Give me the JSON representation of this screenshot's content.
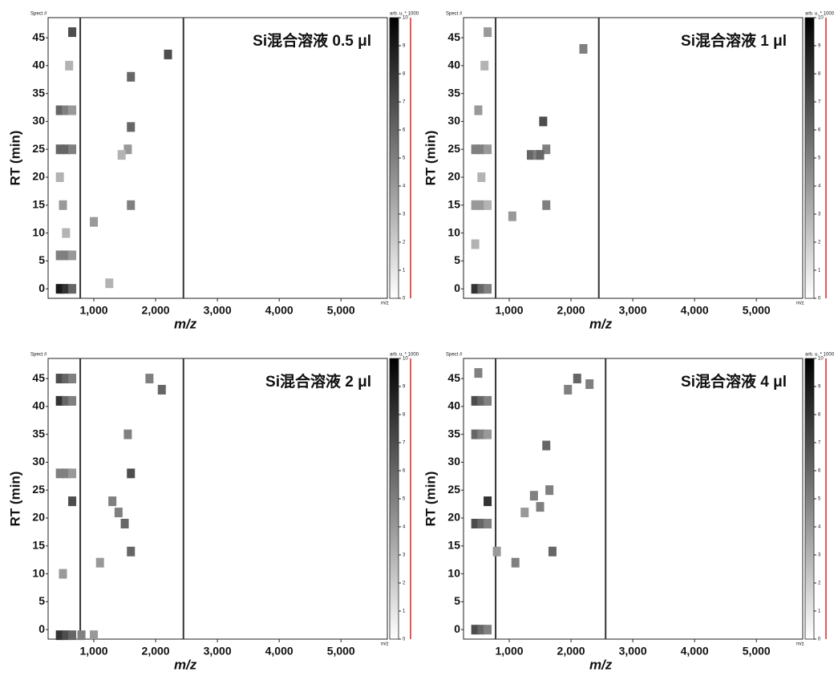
{
  "chart_data": [
    {
      "type": "heatmap",
      "title": "Si混合溶液 0.5 μl",
      "xlabel": "m/z",
      "ylabel": "RT (min)",
      "corner_label": "Spect #",
      "axis_unit": "m/z",
      "cbar_label": "arb. u. * 1000",
      "xlim": [
        260,
        5750
      ],
      "ylim": [
        -1.7,
        48.6
      ],
      "xticks": [
        {
          "value": 1000,
          "label": "1,000"
        },
        {
          "value": 2000,
          "label": "2,000"
        },
        {
          "value": 3000,
          "label": "3,000"
        },
        {
          "value": 4000,
          "label": "4,000"
        },
        {
          "value": 5000,
          "label": "5,000"
        }
      ],
      "yticks": [
        0,
        5,
        10,
        15,
        20,
        25,
        30,
        35,
        40,
        45
      ],
      "cbar_ticks": [
        0,
        1,
        2,
        3,
        4,
        5,
        6,
        7,
        8,
        9,
        10
      ],
      "traces": [
        780,
        2450
      ],
      "x": [
        450,
        550,
        650,
        450,
        550,
        650,
        450,
        550,
        650,
        450,
        550,
        650,
        500,
        600,
        1600,
        1600,
        1550,
        1600,
        1450,
        1000,
        2200,
        1250,
        650,
        450,
        550
      ],
      "y": [
        0,
        0,
        0,
        6,
        6,
        6,
        25,
        25,
        25,
        32,
        32,
        32,
        15,
        40,
        38,
        29,
        25,
        15,
        24,
        12,
        42,
        1,
        46,
        20,
        10
      ],
      "values": [
        9,
        8,
        6,
        5,
        5,
        4,
        6,
        6,
        5,
        6,
        5,
        4,
        4,
        3,
        6,
        6,
        4,
        5,
        3,
        4,
        7,
        3,
        7,
        3,
        3
      ]
    },
    {
      "type": "heatmap",
      "title": "Si混合溶液 1 μl",
      "xlabel": "m/z",
      "ylabel": "RT (min)",
      "corner_label": "Spect #",
      "axis_unit": "m/z",
      "cbar_label": "arb. u. * 1000",
      "xlim": [
        260,
        5750
      ],
      "ylim": [
        -1.7,
        48.6
      ],
      "xticks": [
        {
          "value": 1000,
          "label": "1,000"
        },
        {
          "value": 2000,
          "label": "2,000"
        },
        {
          "value": 3000,
          "label": "3,000"
        },
        {
          "value": 4000,
          "label": "4,000"
        },
        {
          "value": 5000,
          "label": "5,000"
        }
      ],
      "yticks": [
        0,
        5,
        10,
        15,
        20,
        25,
        30,
        35,
        40,
        45
      ],
      "cbar_ticks": [
        0,
        1,
        2,
        3,
        4,
        5,
        6,
        7,
        8,
        9,
        10
      ],
      "traces": [
        780,
        2450
      ],
      "x": [
        450,
        550,
        650,
        450,
        550,
        650,
        450,
        550,
        650,
        500,
        600,
        1550,
        1600,
        1350,
        1450,
        1500,
        1600,
        1050,
        2200,
        650,
        450,
        550
      ],
      "y": [
        0,
        0,
        0,
        15,
        15,
        15,
        25,
        25,
        25,
        32,
        40,
        30,
        25,
        24,
        24,
        24,
        15,
        13,
        43,
        46,
        8,
        20
      ],
      "values": [
        8,
        6,
        5,
        4,
        4,
        3,
        5,
        5,
        4,
        4,
        3,
        7,
        5,
        6,
        5,
        6,
        5,
        4,
        5,
        4,
        3,
        3
      ]
    },
    {
      "type": "heatmap",
      "title": "Si混合溶液 2 μl",
      "xlabel": "m/z",
      "ylabel": "RT (min)",
      "corner_label": "Spect #",
      "axis_unit": "m/z",
      "cbar_label": "arb. u. * 1000",
      "xlim": [
        260,
        5750
      ],
      "ylim": [
        -1.7,
        48.6
      ],
      "xticks": [
        {
          "value": 1000,
          "label": "1,000"
        },
        {
          "value": 2000,
          "label": "2,000"
        },
        {
          "value": 3000,
          "label": "3,000"
        },
        {
          "value": 4000,
          "label": "4,000"
        },
        {
          "value": 5000,
          "label": "5,000"
        }
      ],
      "yticks": [
        0,
        5,
        10,
        15,
        20,
        25,
        30,
        35,
        40,
        45
      ],
      "cbar_ticks": [
        0,
        1,
        2,
        3,
        4,
        5,
        6,
        7,
        8,
        9,
        10
      ],
      "traces": [
        780,
        2450
      ],
      "x": [
        450,
        550,
        650,
        450,
        550,
        650,
        450,
        550,
        650,
        450,
        550,
        650,
        800,
        1000,
        1600,
        1550,
        1600,
        1500,
        1400,
        1300,
        1100,
        2100,
        1900,
        650,
        500
      ],
      "y": [
        -1,
        -1,
        -1,
        41,
        41,
        41,
        45,
        45,
        45,
        28,
        28,
        28,
        -1,
        -1,
        28,
        35,
        14,
        19,
        21,
        23,
        12,
        43,
        45,
        23,
        10
      ],
      "values": [
        8,
        7,
        6,
        8,
        6,
        5,
        7,
        6,
        5,
        5,
        5,
        4,
        5,
        4,
        7,
        5,
        6,
        6,
        5,
        5,
        4,
        6,
        5,
        7,
        4
      ]
    },
    {
      "type": "heatmap",
      "title": "Si混合溶液 4 μl",
      "xlabel": "m/z",
      "ylabel": "RT (min)",
      "corner_label": "Spect #",
      "axis_unit": "m/z",
      "cbar_label": "arb. u. * 1000",
      "xlim": [
        260,
        5750
      ],
      "ylim": [
        -1.7,
        48.6
      ],
      "xticks": [
        {
          "value": 1000,
          "label": "1,000"
        },
        {
          "value": 2000,
          "label": "2,000"
        },
        {
          "value": 3000,
          "label": "3,000"
        },
        {
          "value": 4000,
          "label": "4,000"
        },
        {
          "value": 5000,
          "label": "5,000"
        }
      ],
      "yticks": [
        0,
        5,
        10,
        15,
        20,
        25,
        30,
        35,
        40,
        45
      ],
      "cbar_ticks": [
        0,
        1,
        2,
        3,
        4,
        5,
        6,
        7,
        8,
        9,
        10
      ],
      "traces": [
        780,
        2560
      ],
      "x": [
        450,
        550,
        650,
        450,
        550,
        650,
        450,
        550,
        650,
        450,
        550,
        650,
        1700,
        1650,
        1600,
        1500,
        1400,
        1250,
        1100,
        2100,
        1950,
        2300,
        800,
        650,
        500
      ],
      "y": [
        0,
        0,
        0,
        19,
        19,
        19,
        35,
        35,
        35,
        41,
        41,
        41,
        14,
        25,
        33,
        22,
        24,
        21,
        12,
        45,
        43,
        44,
        14,
        23,
        46
      ],
      "values": [
        7,
        6,
        5,
        7,
        6,
        5,
        6,
        5,
        4,
        7,
        6,
        5,
        6,
        5,
        6,
        5,
        5,
        4,
        5,
        6,
        5,
        5,
        4,
        8,
        5
      ]
    }
  ]
}
